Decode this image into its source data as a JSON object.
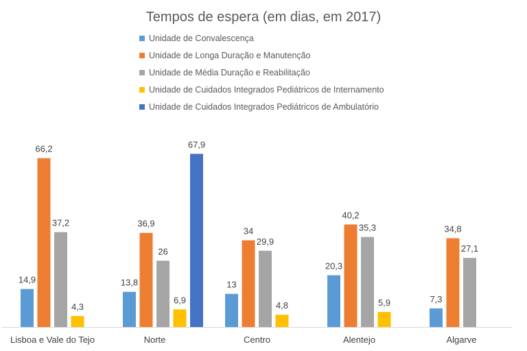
{
  "chart_data": {
    "type": "bar",
    "title": "Tempos de espera (em dias, em 2017)",
    "categories": [
      "Lisboa e Vale do Tejo",
      "Norte",
      "Centro",
      "Alentejo",
      "Algarve"
    ],
    "series": [
      {
        "name": "Unidade de Convalescença",
        "color": "#5b9bd5",
        "values": [
          14.9,
          13.8,
          13,
          20.3,
          7.3
        ],
        "labels": [
          "14,9",
          "13,8",
          "13",
          "20,3",
          "7,3"
        ]
      },
      {
        "name": "Unidade de Longa Duração e Manutenção",
        "color": "#ed7d31",
        "values": [
          66.2,
          36.9,
          34,
          40.2,
          34.8
        ],
        "labels": [
          "66,2",
          "36,9",
          "34",
          "40,2",
          "34,8"
        ]
      },
      {
        "name": "Unidade de Média Duração e Reabilitação",
        "color": "#a5a5a5",
        "values": [
          37.2,
          26,
          29.9,
          35.3,
          27.1
        ],
        "labels": [
          "37,2",
          "26",
          "29,9",
          "35,3",
          "27,1"
        ]
      },
      {
        "name": "Unidade de Cuidados Integrados Pediátricos de Internamento",
        "color": "#ffc000",
        "values": [
          4.3,
          6.9,
          4.8,
          5.9,
          null
        ],
        "labels": [
          "4,3",
          "6,9",
          "4,8",
          "5,9",
          null
        ]
      },
      {
        "name": "Unidade de Cuidados Integrados Pediátricos de Ambulatório",
        "color": "#4472c4",
        "values": [
          null,
          67.9,
          null,
          null,
          null
        ],
        "labels": [
          null,
          "67,9",
          null,
          null,
          null
        ]
      }
    ],
    "ylim": [
      0,
      70
    ],
    "grid": false,
    "legend": "top"
  }
}
